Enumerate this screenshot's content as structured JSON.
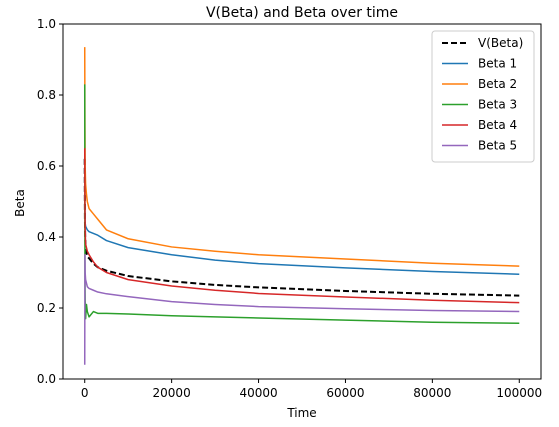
{
  "chart_data": {
    "type": "line",
    "title": "V(Beta) and Beta over time",
    "xlabel": "Time",
    "ylabel": "Beta",
    "xlim": [
      -5000,
      105000
    ],
    "ylim": [
      0.0,
      1.0
    ],
    "xticks": [
      0,
      20000,
      40000,
      60000,
      80000,
      100000
    ],
    "xtick_labels": [
      "0",
      "20000",
      "40000",
      "60000",
      "80000",
      "100000"
    ],
    "yticks": [
      0.0,
      0.2,
      0.4,
      0.6,
      0.8,
      1.0
    ],
    "ytick_labels": [
      "0.0",
      "0.2",
      "0.4",
      "0.6",
      "0.8",
      "1.0"
    ],
    "grid": false,
    "legend_position": "upper right",
    "series": [
      {
        "name": "V(Beta)",
        "color": "#000000",
        "dash": true,
        "x": [
          0,
          50,
          100,
          200,
          400,
          600,
          1000,
          2000,
          3000,
          5000,
          10000,
          20000,
          30000,
          40000,
          60000,
          80000,
          100000
        ],
        "y": [
          0.62,
          0.45,
          0.4,
          0.37,
          0.355,
          0.345,
          0.34,
          0.325,
          0.315,
          0.305,
          0.29,
          0.275,
          0.265,
          0.258,
          0.248,
          0.24,
          0.235
        ]
      },
      {
        "name": "Beta 1",
        "color": "#1f77b4",
        "x": [
          0,
          50,
          100,
          200,
          400,
          600,
          1000,
          2000,
          3000,
          5000,
          10000,
          20000,
          30000,
          40000,
          60000,
          80000,
          100000
        ],
        "y": [
          0.52,
          0.47,
          0.44,
          0.43,
          0.425,
          0.42,
          0.415,
          0.41,
          0.405,
          0.39,
          0.37,
          0.35,
          0.335,
          0.325,
          0.313,
          0.303,
          0.295
        ]
      },
      {
        "name": "Beta 2",
        "color": "#ff7f0e",
        "x": [
          0,
          50,
          100,
          200,
          400,
          600,
          1000,
          2000,
          3000,
          5000,
          10000,
          20000,
          30000,
          40000,
          60000,
          80000,
          100000
        ],
        "y": [
          0.935,
          0.72,
          0.6,
          0.55,
          0.52,
          0.5,
          0.48,
          0.465,
          0.45,
          0.42,
          0.395,
          0.372,
          0.36,
          0.35,
          0.338,
          0.326,
          0.318
        ]
      },
      {
        "name": "Beta 3",
        "color": "#2ca02c",
        "x": [
          0,
          50,
          100,
          200,
          400,
          600,
          1000,
          2000,
          3000,
          5000,
          10000,
          20000,
          30000,
          40000,
          60000,
          80000,
          100000
        ],
        "y": [
          0.83,
          0.3,
          0.22,
          0.17,
          0.21,
          0.19,
          0.175,
          0.19,
          0.185,
          0.185,
          0.183,
          0.178,
          0.175,
          0.172,
          0.166,
          0.16,
          0.157
        ]
      },
      {
        "name": "Beta 4",
        "color": "#d62728",
        "x": [
          0,
          50,
          100,
          200,
          400,
          600,
          1000,
          2000,
          3000,
          5000,
          10000,
          20000,
          30000,
          40000,
          60000,
          80000,
          100000
        ],
        "y": [
          0.65,
          0.5,
          0.42,
          0.38,
          0.37,
          0.36,
          0.35,
          0.33,
          0.315,
          0.3,
          0.28,
          0.262,
          0.25,
          0.241,
          0.231,
          0.222,
          0.215
        ]
      },
      {
        "name": "Beta 5",
        "color": "#9467bd",
        "x": [
          0,
          50,
          100,
          200,
          400,
          600,
          1000,
          2000,
          3000,
          5000,
          10000,
          20000,
          30000,
          40000,
          60000,
          80000,
          100000
        ],
        "y": [
          0.04,
          0.35,
          0.3,
          0.28,
          0.27,
          0.26,
          0.255,
          0.25,
          0.245,
          0.24,
          0.232,
          0.218,
          0.21,
          0.204,
          0.198,
          0.193,
          0.19
        ]
      }
    ]
  }
}
